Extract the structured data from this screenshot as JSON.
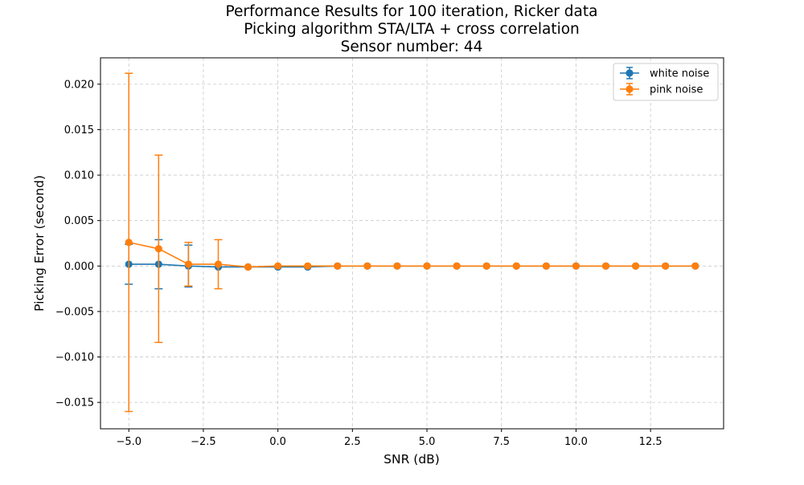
{
  "chart_data": {
    "type": "line",
    "title_lines": [
      "Performance Results for 100 iteration, Ricker data",
      "Picking algorithm STA/LTA + cross correlation",
      "Sensor number: 44"
    ],
    "xlabel": "SNR (dB)",
    "ylabel": "Picking Error (second)",
    "xlim": [
      -5.95,
      14.95
    ],
    "ylim": [
      -0.0179,
      0.0229
    ],
    "xticks": [
      -5.0,
      -2.5,
      0.0,
      2.5,
      5.0,
      7.5,
      10.0,
      12.5
    ],
    "xtick_labels": [
      "−5.0",
      "−2.5",
      "0.0",
      "2.5",
      "5.0",
      "7.5",
      "10.0",
      "12.5"
    ],
    "yticks": [
      -0.015,
      -0.01,
      -0.005,
      0.0,
      0.005,
      0.01,
      0.015,
      0.02
    ],
    "ytick_labels": [
      "−0.015",
      "−0.010",
      "−0.005",
      "0.000",
      "0.005",
      "0.010",
      "0.015",
      "0.020"
    ],
    "grid": true,
    "legend_position": "top-right",
    "x": [
      -5,
      -4,
      -3,
      -2,
      -1,
      0,
      1,
      2,
      3,
      4,
      5,
      6,
      7,
      8,
      9,
      10,
      11,
      12,
      13,
      14
    ],
    "series": [
      {
        "name": "white noise",
        "color": "#1f77b4",
        "values": [
          0.0002,
          0.0002,
          0.0,
          -0.0001,
          -0.0001,
          -0.0001,
          -0.0001,
          0.0,
          0.0,
          0.0,
          0.0,
          0.0,
          0.0,
          0.0,
          0.0,
          0.0,
          0.0,
          0.0,
          0.0,
          0.0
        ],
        "errors": [
          0.0022,
          0.0027,
          0.0023,
          0.0,
          0.0,
          0.0,
          0.0,
          0.0,
          0.0,
          0.0,
          0.0,
          0.0,
          0.0,
          0.0,
          0.0,
          0.0,
          0.0,
          0.0,
          0.0,
          0.0
        ]
      },
      {
        "name": "pink noise",
        "color": "#ff7f0e",
        "values": [
          0.0026,
          0.0019,
          0.0002,
          0.0002,
          -0.0001,
          0.0,
          0.0,
          0.0,
          0.0,
          0.0,
          0.0,
          0.0,
          0.0,
          0.0,
          0.0,
          0.0,
          0.0,
          0.0,
          0.0,
          0.0
        ],
        "errors": [
          0.0186,
          0.0103,
          0.0024,
          0.0027,
          0.0,
          0.0,
          0.0,
          0.0,
          0.0,
          0.0,
          0.0,
          0.0,
          0.0,
          0.0,
          0.0,
          0.0,
          0.0,
          0.0,
          0.0,
          0.0
        ]
      }
    ]
  }
}
